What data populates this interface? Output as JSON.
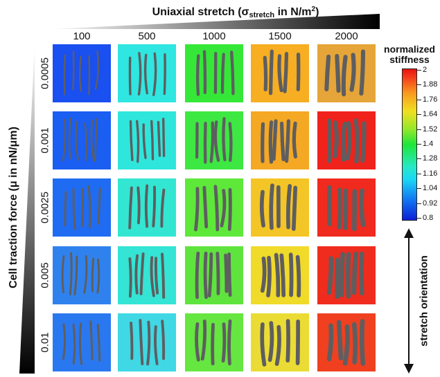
{
  "header_top": {
    "title_prefix": "Uniaxial stretch (σ",
    "title_subscript": "stretch",
    "title_mid": " in N/m",
    "title_superscript": "2",
    "title_suffix": ")",
    "columns": [
      "100",
      "500",
      "1000",
      "1500",
      "2000"
    ]
  },
  "header_left": {
    "title": "Cell traction force (μ in nN/μm)",
    "rows": [
      "0.0005",
      "0.001",
      "0.0025",
      "0.005",
      "0.01"
    ]
  },
  "colorbar": {
    "title_line1": "normalized",
    "title_line2": "stiffness",
    "ticks": [
      "2",
      "1.88",
      "1.76",
      "1.64",
      "1.52",
      "1.4",
      "1.28",
      "1.16",
      "1.04",
      "0.92",
      "0.8"
    ]
  },
  "stretch_orientation": {
    "label": "stretch orientation"
  },
  "grid": {
    "background_colors": [
      [
        "#1a4ff0",
        "#2fe6e0",
        "#35e838",
        "#f7ae22",
        "#e6a538"
      ],
      [
        "#1a5ef2",
        "#2fe6dc",
        "#3ee842",
        "#f5a823",
        "#f0221c"
      ],
      [
        "#1f6cf2",
        "#33e6d2",
        "#5ee83a",
        "#f4c526",
        "#f02a1e"
      ],
      [
        "#2f82ee",
        "#34e4d4",
        "#5fe43e",
        "#f0da2a",
        "#f02c1e"
      ],
      [
        "#2a78f0",
        "#3fd8e4",
        "#66e640",
        "#eadc34",
        "#f0401f"
      ]
    ],
    "cell_color": "#5e5e60"
  }
}
